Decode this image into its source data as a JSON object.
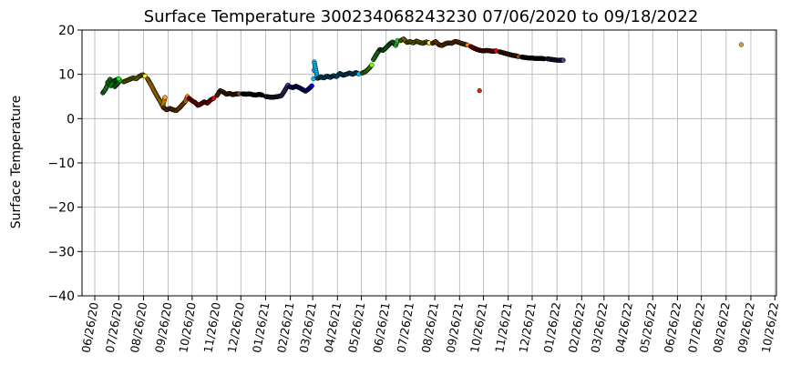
{
  "chart_data": {
    "type": "scatter",
    "title": "Surface Temperature 300234068243230  07/06/2020 to 09/18/2022",
    "xlabel": "",
    "ylabel": "Surface Temperature",
    "ylim": [
      -40,
      20
    ],
    "xlim": [
      "2020-06-10",
      "2022-10-28"
    ],
    "grid": true,
    "y_ticks": [
      -40,
      -30,
      -20,
      -10,
      0,
      10,
      20
    ],
    "x_ticks": [
      "06/26/20",
      "07/26/20",
      "08/26/20",
      "09/26/20",
      "10/26/20",
      "11/26/20",
      "12/26/20",
      "01/26/21",
      "02/26/21",
      "03/26/21",
      "04/26/21",
      "05/26/21",
      "06/26/21",
      "07/26/21",
      "08/26/21",
      "09/26/21",
      "10/26/21",
      "11/26/21",
      "12/26/21",
      "01/26/22",
      "02/26/22",
      "03/26/22",
      "04/26/22",
      "05/26/22",
      "06/26/22",
      "07/26/22",
      "08/26/22",
      "09/26/22",
      "10/26/22"
    ],
    "series": [
      {
        "color": "#2fc42f",
        "points": [
          [
            "2020-07-06",
            5.8
          ],
          [
            "2020-07-09",
            6.5
          ],
          [
            "2020-07-12",
            7.6
          ],
          [
            "2020-07-15",
            8.9
          ],
          [
            "2020-07-18",
            8.0
          ],
          [
            "2020-07-21",
            7.2
          ],
          [
            "2020-07-24",
            7.8
          ],
          [
            "2020-07-28",
            8.6
          ]
        ]
      },
      {
        "color": "#00ff00",
        "points": [
          [
            "2020-07-12",
            8.2
          ],
          [
            "2020-07-16",
            7.4
          ],
          [
            "2020-07-20",
            8.5
          ],
          [
            "2020-07-26",
            9.0
          ]
        ]
      },
      {
        "color": "#ffff00",
        "points": [
          [
            "2020-08-01",
            8.3
          ],
          [
            "2020-08-05",
            8.6
          ],
          [
            "2020-08-09",
            8.9
          ],
          [
            "2020-08-13",
            9.2
          ],
          [
            "2020-08-17",
            9.0
          ],
          [
            "2020-08-21",
            9.6
          ],
          [
            "2020-08-25",
            9.9
          ],
          [
            "2020-08-28",
            9.6
          ]
        ]
      },
      {
        "color": "#ffa500",
        "points": [
          [
            "2020-08-31",
            9.0
          ],
          [
            "2020-09-04",
            7.8
          ],
          [
            "2020-09-08",
            6.4
          ],
          [
            "2020-09-12",
            5.1
          ],
          [
            "2020-09-16",
            3.9
          ],
          [
            "2020-09-19",
            2.8
          ],
          [
            "2020-09-22",
            4.8
          ]
        ]
      },
      {
        "color": "#ff7f00",
        "points": [
          [
            "2020-09-20",
            2.5
          ],
          [
            "2020-09-24",
            2.0
          ],
          [
            "2020-09-28",
            2.3
          ],
          [
            "2020-10-02",
            2.0
          ],
          [
            "2020-10-06",
            1.8
          ],
          [
            "2020-10-10",
            2.4
          ],
          [
            "2020-10-14",
            3.2
          ],
          [
            "2020-10-18",
            4.0
          ],
          [
            "2020-10-20",
            5.0
          ]
        ]
      },
      {
        "color": "#ff0000",
        "points": [
          [
            "2020-10-22",
            4.6
          ],
          [
            "2020-10-26",
            4.0
          ],
          [
            "2020-10-30",
            3.6
          ],
          [
            "2020-11-02",
            3.0
          ],
          [
            "2020-11-06",
            3.3
          ],
          [
            "2020-11-10",
            3.8
          ],
          [
            "2020-11-14",
            3.5
          ],
          [
            "2020-11-18",
            4.2
          ],
          [
            "2020-11-22",
            4.6
          ]
        ]
      },
      {
        "color": "#8b4513",
        "points": [
          [
            "2020-11-26",
            5.2
          ],
          [
            "2020-11-30",
            6.3
          ],
          [
            "2020-12-04",
            6.0
          ],
          [
            "2020-12-08",
            5.5
          ],
          [
            "2020-12-12",
            5.7
          ],
          [
            "2020-12-16",
            5.4
          ],
          [
            "2020-12-20",
            5.6
          ],
          [
            "2020-12-24",
            5.6
          ]
        ]
      },
      {
        "color": "#000000",
        "points": [
          [
            "2020-12-28",
            5.6
          ],
          [
            "2021-01-02",
            5.5
          ],
          [
            "2021-01-06",
            5.6
          ],
          [
            "2021-01-10",
            5.4
          ],
          [
            "2021-01-14",
            5.3
          ],
          [
            "2021-01-18",
            5.5
          ],
          [
            "2021-01-22",
            5.3
          ]
        ]
      },
      {
        "color": "#4b3f8f",
        "points": [
          [
            "2021-01-26",
            5.0
          ],
          [
            "2021-01-30",
            4.9
          ],
          [
            "2021-02-03",
            4.8
          ],
          [
            "2021-02-07",
            4.9
          ],
          [
            "2021-02-11",
            5.0
          ],
          [
            "2021-02-15",
            5.2
          ],
          [
            "2021-02-19",
            6.3
          ],
          [
            "2021-02-23",
            7.6
          ]
        ]
      },
      {
        "color": "#0000ff",
        "points": [
          [
            "2021-02-25",
            7.2
          ],
          [
            "2021-03-01",
            7.0
          ],
          [
            "2021-03-05",
            7.3
          ],
          [
            "2021-03-09",
            7.0
          ],
          [
            "2021-03-13",
            6.6
          ],
          [
            "2021-03-17",
            6.2
          ],
          [
            "2021-03-21",
            6.7
          ],
          [
            "2021-03-25",
            7.4
          ]
        ]
      },
      {
        "color": "#00bfff",
        "points": [
          [
            "2021-03-27",
            9.0
          ],
          [
            "2021-03-28",
            12.8
          ],
          [
            "2021-04-01",
            9.1
          ],
          [
            "2021-04-05",
            9.4
          ],
          [
            "2021-04-09",
            9.2
          ],
          [
            "2021-04-13",
            9.6
          ],
          [
            "2021-04-17",
            9.3
          ],
          [
            "2021-04-21",
            9.7
          ],
          [
            "2021-04-25",
            9.5
          ],
          [
            "2021-04-29",
            10.2
          ],
          [
            "2021-05-03",
            9.8
          ],
          [
            "2021-05-07",
            10.0
          ],
          [
            "2021-05-11",
            10.3
          ],
          [
            "2021-05-15",
            10.0
          ],
          [
            "2021-05-19",
            10.4
          ],
          [
            "2021-05-23",
            10.1
          ]
        ]
      },
      {
        "color": "#7fff00",
        "points": [
          [
            "2021-05-27",
            10.3
          ],
          [
            "2021-05-31",
            10.6
          ],
          [
            "2021-06-04",
            11.2
          ],
          [
            "2021-06-08",
            12.1
          ]
        ]
      },
      {
        "color": "#2fc42f",
        "points": [
          [
            "2021-06-10",
            13.3
          ],
          [
            "2021-06-14",
            14.5
          ],
          [
            "2021-06-18",
            15.6
          ],
          [
            "2021-06-22",
            15.4
          ],
          [
            "2021-06-26",
            16.0
          ],
          [
            "2021-06-30",
            16.8
          ],
          [
            "2021-07-04",
            17.3
          ],
          [
            "2021-07-08",
            16.5
          ],
          [
            "2021-07-10",
            17.6
          ]
        ]
      },
      {
        "color": "#ffff00",
        "points": [
          [
            "2021-07-14",
            17.6
          ],
          [
            "2021-07-18",
            18.0
          ],
          [
            "2021-07-22",
            17.2
          ],
          [
            "2021-07-26",
            17.4
          ],
          [
            "2021-07-30",
            17.1
          ],
          [
            "2021-08-03",
            17.5
          ],
          [
            "2021-08-07",
            17.2
          ],
          [
            "2021-08-11",
            17.0
          ],
          [
            "2021-08-15",
            17.3
          ],
          [
            "2021-08-19",
            17.1
          ]
        ]
      },
      {
        "color": "#ff7f00",
        "points": [
          [
            "2021-08-23",
            17.0
          ],
          [
            "2021-08-27",
            17.4
          ],
          [
            "2021-08-31",
            16.7
          ],
          [
            "2021-09-04",
            16.5
          ],
          [
            "2021-09-08",
            16.9
          ],
          [
            "2021-09-12",
            17.1
          ],
          [
            "2021-09-16",
            17.0
          ],
          [
            "2021-09-20",
            17.4
          ],
          [
            "2021-09-24",
            17.3
          ],
          [
            "2021-09-28",
            17.0
          ],
          [
            "2021-10-02",
            16.8
          ],
          [
            "2021-10-06",
            16.6
          ]
        ]
      },
      {
        "color": "#ff0000",
        "points": [
          [
            "2021-10-10",
            16.3
          ],
          [
            "2021-10-14",
            15.9
          ],
          [
            "2021-10-18",
            15.6
          ],
          [
            "2021-10-22",
            15.4
          ],
          [
            "2021-10-26",
            15.3
          ],
          [
            "2021-10-30",
            15.4
          ],
          [
            "2021-11-03",
            15.3
          ],
          [
            "2021-11-07",
            15.2
          ],
          [
            "2021-11-11",
            15.3
          ]
        ]
      },
      {
        "color": "#8b4513",
        "points": [
          [
            "2021-11-15",
            15.1
          ],
          [
            "2021-11-19",
            14.9
          ],
          [
            "2021-11-23",
            14.7
          ],
          [
            "2021-11-27",
            14.5
          ],
          [
            "2021-12-01",
            14.3
          ],
          [
            "2021-12-05",
            14.2
          ],
          [
            "2021-12-09",
            14.0
          ]
        ]
      },
      {
        "color": "#000000",
        "points": [
          [
            "2021-12-13",
            13.9
          ],
          [
            "2021-12-17",
            13.8
          ],
          [
            "2021-12-21",
            13.7
          ],
          [
            "2021-12-25",
            13.7
          ],
          [
            "2021-12-29",
            13.6
          ],
          [
            "2022-01-02",
            13.6
          ],
          [
            "2022-01-06",
            13.6
          ],
          [
            "2022-01-10",
            13.5
          ]
        ]
      },
      {
        "color": "#4b3f8f",
        "points": [
          [
            "2022-01-14",
            13.5
          ],
          [
            "2022-01-18",
            13.4
          ],
          [
            "2022-01-22",
            13.3
          ],
          [
            "2022-01-26",
            13.2
          ],
          [
            "2022-01-30",
            13.2
          ],
          [
            "2022-02-03",
            13.2
          ]
        ]
      },
      {
        "color": "#cc3300",
        "points": [
          [
            "2021-10-21",
            6.3
          ]
        ]
      },
      {
        "color": "#d2a24c",
        "points": [
          [
            "2022-09-14",
            16.7
          ]
        ]
      }
    ]
  }
}
